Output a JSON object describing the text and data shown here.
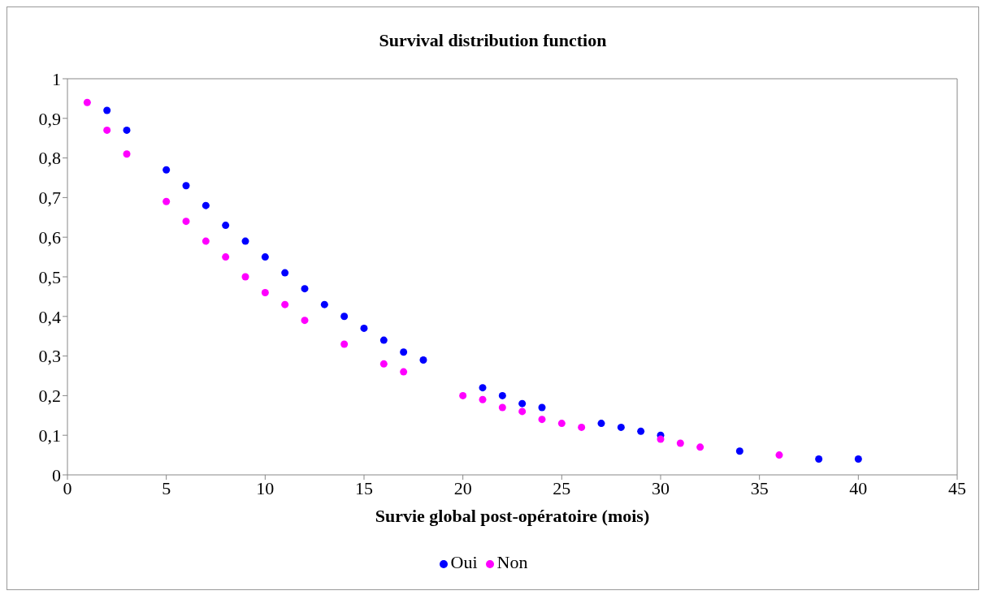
{
  "chart_data": {
    "type": "scatter",
    "title": "Survival distribution function",
    "xlabel": "Survie global post-opératoire (mois)",
    "xlim": [
      0,
      45
    ],
    "xticks": [
      0,
      5,
      10,
      15,
      20,
      25,
      30,
      35,
      40,
      45
    ],
    "ylim": [
      0,
      1
    ],
    "yticks": [
      0,
      {
        "value": 0.1,
        "label": "0,1"
      },
      {
        "value": 0.2,
        "label": "0,2"
      },
      {
        "value": 0.3,
        "label": "0,3"
      },
      {
        "value": 0.4,
        "label": "0,4"
      },
      {
        "value": 0.5,
        "label": "0,5"
      },
      {
        "value": 0.6,
        "label": "0,6"
      },
      {
        "value": 0.7,
        "label": "0,7"
      },
      {
        "value": 0.8,
        "label": "0,8"
      },
      {
        "value": 0.9,
        "label": "0,9"
      },
      1
    ],
    "grid": false,
    "legend": "bottom",
    "marker": "circle",
    "series": [
      {
        "name": "Oui",
        "color": "#0000ff",
        "x": [
          2,
          3,
          5,
          6,
          7,
          8,
          9,
          10,
          11,
          12,
          13,
          14,
          15,
          16,
          17,
          18,
          21,
          22,
          23,
          24,
          27,
          28,
          29,
          30,
          34,
          38,
          40
        ],
        "values": [
          0.92,
          0.87,
          0.77,
          0.73,
          0.68,
          0.63,
          0.59,
          0.55,
          0.51,
          0.47,
          0.43,
          0.4,
          0.37,
          0.34,
          0.31,
          0.29,
          0.22,
          0.2,
          0.18,
          0.17,
          0.13,
          0.12,
          0.11,
          0.1,
          0.06,
          0.04,
          0.04
        ]
      },
      {
        "name": "Non",
        "color": "#ff00ff",
        "x": [
          1,
          2,
          3,
          5,
          6,
          7,
          8,
          9,
          10,
          11,
          12,
          14,
          16,
          17,
          20,
          21,
          22,
          23,
          24,
          25,
          26,
          30,
          31,
          32,
          36
        ],
        "values": [
          0.94,
          0.87,
          0.81,
          0.69,
          0.64,
          0.59,
          0.55,
          0.5,
          0.46,
          0.43,
          0.39,
          0.33,
          0.28,
          0.26,
          0.2,
          0.19,
          0.17,
          0.16,
          0.14,
          0.13,
          0.12,
          0.09,
          0.08,
          0.07,
          0.05
        ]
      }
    ]
  }
}
